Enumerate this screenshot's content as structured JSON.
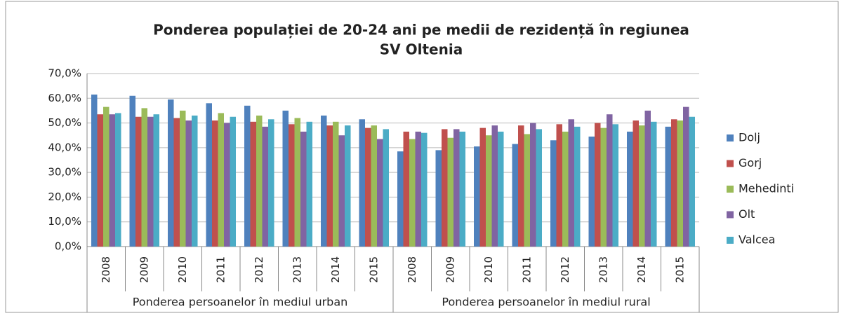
{
  "chart_data": {
    "type": "bar",
    "title": [
      "Ponderea populației de 20-24 ani pe medii de rezidență în regiunea",
      "SV Oltenia"
    ],
    "groups": [
      {
        "label": "Ponderea persoanelor în mediul urban",
        "categories": [
          "2008",
          "2009",
          "2010",
          "2011",
          "2012",
          "2013",
          "2014",
          "2015"
        ]
      },
      {
        "label": "Ponderea persoanelor în mediul rural",
        "categories": [
          "2008",
          "2009",
          "2010",
          "2011",
          "2012",
          "2013",
          "2014",
          "2015"
        ]
      }
    ],
    "series": [
      {
        "name": "Dolj",
        "color": "#4f81bd",
        "values": [
          61.5,
          61,
          59.5,
          58,
          57,
          55,
          53,
          51.5,
          38.5,
          39,
          40.5,
          41.5,
          43,
          44.5,
          46.5,
          48.5
        ]
      },
      {
        "name": "Gorj",
        "color": "#c0504d",
        "values": [
          53.5,
          52.5,
          52,
          51,
          50.5,
          49.5,
          49,
          48,
          46.5,
          47.5,
          48,
          49,
          49.5,
          50,
          51,
          51.5
        ]
      },
      {
        "name": "Mehedinti",
        "color": "#9bbb59",
        "values": [
          56.5,
          56,
          55,
          54,
          53,
          52,
          50.5,
          49,
          43.5,
          44,
          45,
          45.5,
          46.5,
          48,
          49,
          51
        ]
      },
      {
        "name": "Olt",
        "color": "#8064a2",
        "values": [
          53.5,
          52.5,
          51,
          50,
          48.5,
          46.5,
          45,
          43.5,
          46.5,
          47.5,
          49,
          50,
          51.5,
          53.5,
          55,
          56.5
        ]
      },
      {
        "name": "Valcea",
        "color": "#4bacc6",
        "values": [
          54,
          53.5,
          53,
          52.5,
          51.5,
          50.5,
          49,
          47.5,
          46,
          46.5,
          46.5,
          47.5,
          48.5,
          49.5,
          50.5,
          52.5
        ]
      }
    ],
    "ylim": [
      0,
      70
    ],
    "yticks": [
      {
        "value": 0,
        "label": "0,0%"
      },
      {
        "value": 10,
        "label": "10,0%"
      },
      {
        "value": 20,
        "label": "20,0%"
      },
      {
        "value": 30,
        "label": "30,0%"
      },
      {
        "value": 40,
        "label": "40,0%"
      },
      {
        "value": 50,
        "label": "50,0%"
      },
      {
        "value": 60,
        "label": "60,0%"
      },
      {
        "value": 70,
        "label": "70,0%"
      }
    ],
    "grid": true,
    "legend": "right"
  }
}
